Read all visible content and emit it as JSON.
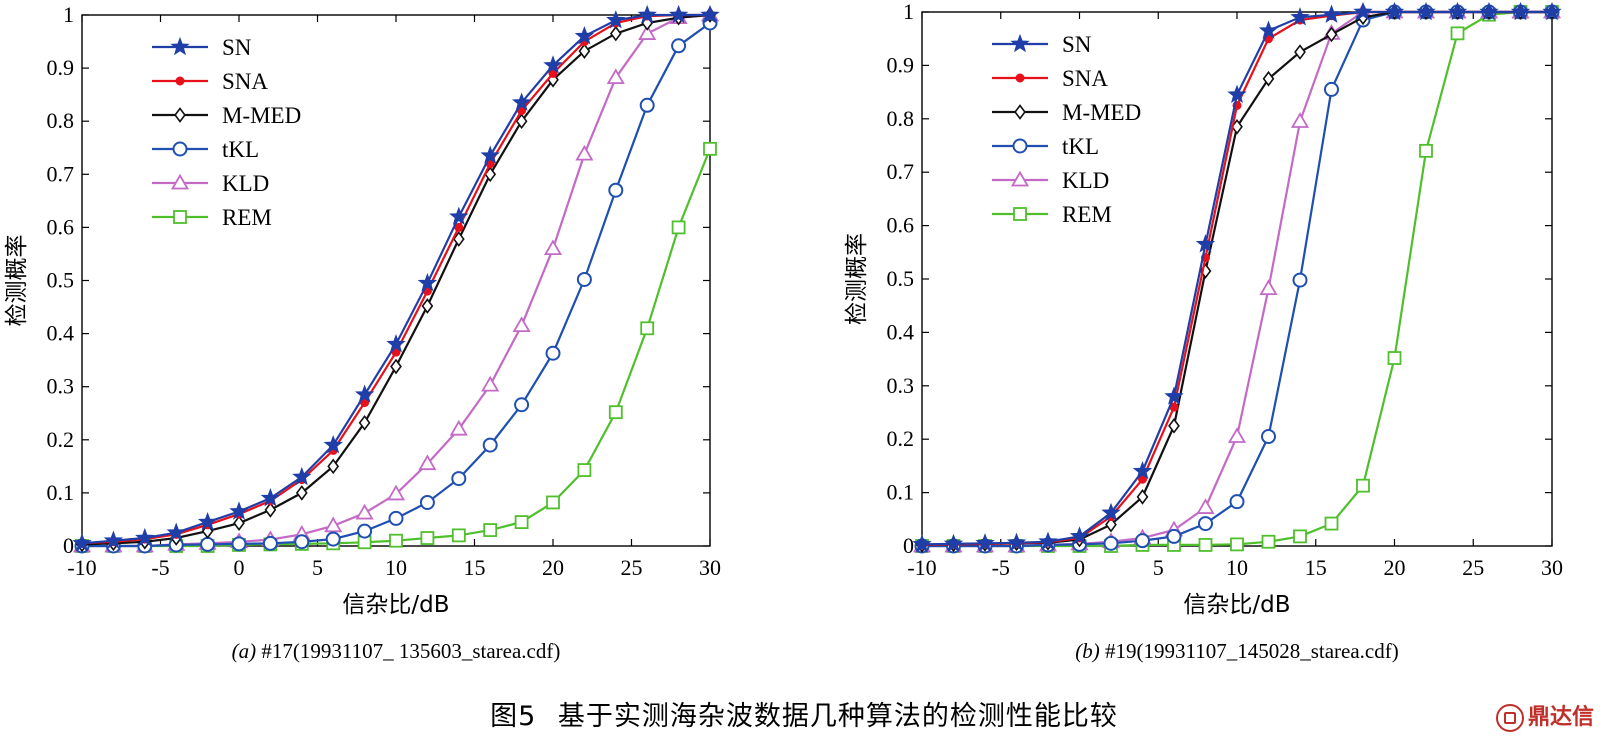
{
  "figure_caption": {
    "label": "图5",
    "text": "基于实测海杂波数据几种算法的检测性能比较"
  },
  "watermark": "鼎达信",
  "series_styles": [
    {
      "name": "SN",
      "color": "#1f3ea8",
      "marker": "star"
    },
    {
      "name": "SNA",
      "color": "#e8101b",
      "marker": "dot"
    },
    {
      "name": "M-MED",
      "color": "#111111",
      "marker": "diamond"
    },
    {
      "name": "tKL",
      "color": "#1f4fb0",
      "marker": "circle"
    },
    {
      "name": "KLD",
      "color": "#c46ac6",
      "marker": "triangle"
    },
    {
      "name": "REM",
      "color": "#4fbf2c",
      "marker": "square"
    }
  ],
  "chart_data": [
    {
      "type": "line",
      "subcaption_tag": "(a)",
      "subcaption_text": "#17(19931107_ 135603_starea.cdf)",
      "xlabel": "信杂比/dB",
      "ylabel": "检测概率",
      "xlim": [
        -10,
        30
      ],
      "ylim": [
        0,
        1
      ],
      "xticks": [
        -10,
        -5,
        0,
        5,
        10,
        15,
        20,
        25,
        30
      ],
      "yticks": [
        0,
        0.1,
        0.2,
        0.3,
        0.4,
        0.5,
        0.6,
        0.7,
        0.8,
        0.9,
        1
      ],
      "ytick_labels": [
        "0",
        "0.1",
        "0.2",
        "0.3",
        "0.4",
        "0.5",
        "0.6",
        "0.7",
        "0.8",
        "0.9",
        "1"
      ],
      "legend_position": "top-left",
      "x": [
        -10,
        -8,
        -6,
        -4,
        -2,
        0,
        2,
        4,
        6,
        8,
        10,
        12,
        14,
        16,
        18,
        20,
        22,
        24,
        26,
        28,
        30
      ],
      "series": [
        {
          "name": "SN",
          "values": [
            0.005,
            0.01,
            0.015,
            0.025,
            0.045,
            0.065,
            0.09,
            0.13,
            0.19,
            0.285,
            0.38,
            0.495,
            0.62,
            0.735,
            0.835,
            0.905,
            0.96,
            0.99,
            1.0,
            1.0,
            1.0
          ]
        },
        {
          "name": "SNA",
          "values": [
            0.005,
            0.008,
            0.013,
            0.022,
            0.04,
            0.06,
            0.085,
            0.125,
            0.18,
            0.27,
            0.365,
            0.48,
            0.6,
            0.72,
            0.82,
            0.89,
            0.95,
            0.985,
            0.998,
            1.0,
            1.0
          ]
        },
        {
          "name": "M-MED",
          "values": [
            0.003,
            0.005,
            0.008,
            0.015,
            0.028,
            0.043,
            0.068,
            0.1,
            0.15,
            0.232,
            0.338,
            0.452,
            0.578,
            0.7,
            0.8,
            0.878,
            0.932,
            0.965,
            0.985,
            0.995,
            1.0
          ]
        },
        {
          "name": "tKL",
          "values": [
            0.0,
            0.0,
            0.0,
            0.002,
            0.003,
            0.004,
            0.005,
            0.008,
            0.013,
            0.028,
            0.052,
            0.082,
            0.127,
            0.19,
            0.266,
            0.363,
            0.502,
            0.67,
            0.83,
            0.942,
            0.985
          ]
        },
        {
          "name": "KLD",
          "values": [
            0.0,
            0.0,
            0.0,
            0.003,
            0.005,
            0.008,
            0.012,
            0.022,
            0.038,
            0.062,
            0.098,
            0.155,
            0.22,
            0.303,
            0.415,
            0.56,
            0.738,
            0.882,
            0.965,
            0.995,
            1.0
          ]
        },
        {
          "name": "REM",
          "values": [
            0.0,
            0.0,
            0.0,
            0.0,
            0.0,
            0.002,
            0.003,
            0.004,
            0.005,
            0.007,
            0.01,
            0.015,
            0.02,
            0.03,
            0.045,
            0.082,
            0.143,
            0.252,
            0.41,
            0.6,
            0.748
          ]
        }
      ]
    },
    {
      "type": "line",
      "subcaption_tag": "(b)",
      "subcaption_text": "#19(19931107_145028_starea.cdf)",
      "xlabel": "信杂比/dB",
      "ylabel": "检测概率",
      "xlim": [
        -10,
        30
      ],
      "ylim": [
        0,
        1
      ],
      "xticks": [
        -10,
        -5,
        0,
        5,
        10,
        15,
        20,
        25,
        30
      ],
      "yticks": [
        0,
        0.1,
        0.2,
        0.3,
        0.4,
        0.5,
        0.6,
        0.7,
        0.8,
        0.9,
        1
      ],
      "ytick_labels": [
        "0",
        "0.1",
        "0.2",
        "0.3",
        "0.4",
        "0.5",
        "0.6",
        "0.7",
        "0.8",
        "0.9",
        "1"
      ],
      "legend_position": "top-left",
      "x": [
        -10,
        -8,
        -6,
        -4,
        -2,
        0,
        2,
        4,
        6,
        8,
        10,
        12,
        14,
        16,
        18,
        20,
        22,
        24,
        26,
        28,
        30
      ],
      "series": [
        {
          "name": "SN",
          "values": [
            0.003,
            0.004,
            0.005,
            0.006,
            0.008,
            0.018,
            0.062,
            0.14,
            0.28,
            0.565,
            0.845,
            0.965,
            0.99,
            0.995,
            1.0,
            1.0,
            1.0,
            1.0,
            1.0,
            1.0,
            1.0
          ]
        },
        {
          "name": "SNA",
          "values": [
            0.002,
            0.003,
            0.004,
            0.005,
            0.007,
            0.015,
            0.055,
            0.125,
            0.26,
            0.54,
            0.825,
            0.95,
            0.985,
            0.993,
            1.0,
            1.0,
            1.0,
            1.0,
            1.0,
            1.0,
            1.0
          ]
        },
        {
          "name": "M-MED",
          "values": [
            0.002,
            0.003,
            0.004,
            0.005,
            0.006,
            0.012,
            0.04,
            0.092,
            0.225,
            0.515,
            0.785,
            0.875,
            0.925,
            0.958,
            0.99,
            1.0,
            1.0,
            1.0,
            1.0,
            1.0,
            1.0
          ]
        },
        {
          "name": "tKL",
          "values": [
            0.0,
            0.0,
            0.0,
            0.0,
            0.002,
            0.003,
            0.005,
            0.01,
            0.018,
            0.042,
            0.083,
            0.205,
            0.498,
            0.855,
            0.985,
            1.0,
            1.0,
            1.0,
            1.0,
            1.0,
            1.0
          ]
        },
        {
          "name": "KLD",
          "values": [
            0.0,
            0.0,
            0.0,
            0.0,
            0.002,
            0.004,
            0.008,
            0.015,
            0.03,
            0.072,
            0.205,
            0.482,
            0.795,
            0.96,
            1.0,
            1.0,
            1.0,
            1.0,
            1.0,
            1.0,
            1.0
          ]
        },
        {
          "name": "REM",
          "values": [
            0.0,
            0.0,
            0.0,
            0.0,
            0.0,
            0.0,
            0.0,
            0.002,
            0.002,
            0.002,
            0.003,
            0.008,
            0.018,
            0.042,
            0.113,
            0.352,
            0.74,
            0.96,
            0.995,
            1.0,
            1.0
          ]
        }
      ]
    }
  ]
}
